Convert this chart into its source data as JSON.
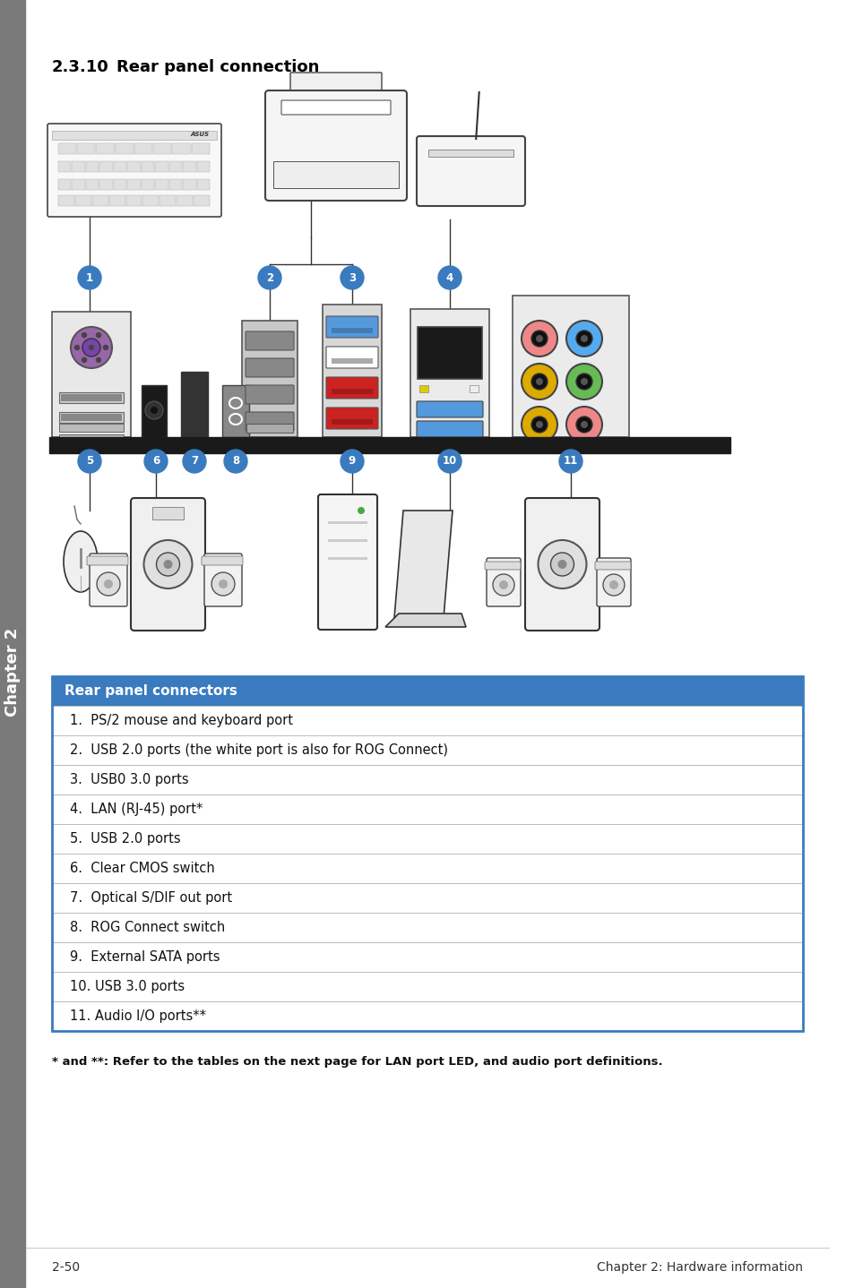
{
  "title_number": "2.3.10",
  "title_text": "Rear panel connection",
  "bg_color": "#ffffff",
  "sidebar_color": "#808080",
  "sidebar_text": "Chapter 2",
  "table_header": "Rear panel connectors",
  "table_header_bg": "#3a7bbf",
  "table_header_color": "#ffffff",
  "table_rows": [
    "1.  PS/2 mouse and keyboard port",
    "2.  USB 2.0 ports (the white port is also for ROG Connect)",
    "3.  USB0 3.0 ports",
    "4.  LAN (RJ-45) port*",
    "5.  USB 2.0 ports",
    "6.  Clear CMOS switch",
    "7.  Optical S/DIF out port",
    "8.  ROG Connect switch",
    "9.  External SATA ports",
    "10. USB 3.0 ports",
    "11. Audio I/O ports**"
  ],
  "footer_note": "* and **: Refer to the tables on the next page for LAN port LED, and audio port definitions.",
  "footer_left": "2-50",
  "footer_right": "Chapter 2: Hardware information",
  "label_color": "#3a7bbf",
  "label_text_color": "#ffffff",
  "row_bg_alt": "#ffffff",
  "row_bg_normal": "#ffffff",
  "row_divider": "#cccccc"
}
